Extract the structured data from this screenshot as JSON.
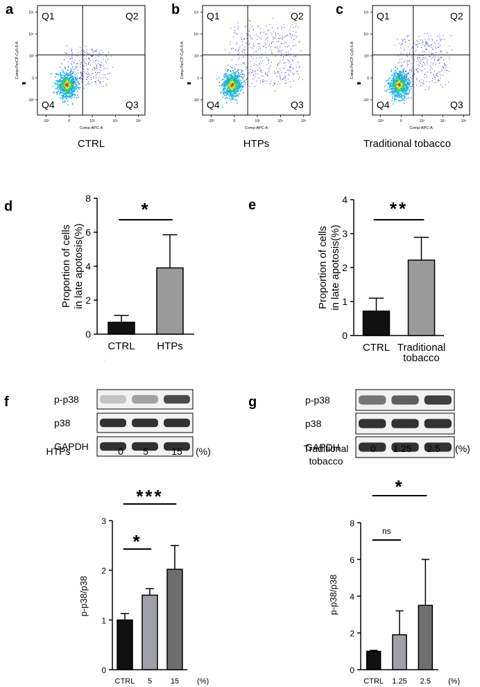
{
  "panels": {
    "a": "a",
    "b": "b",
    "c": "c",
    "d": "d",
    "e": "e",
    "f": "f",
    "g": "g"
  },
  "flow": [
    {
      "caption": "CTRL",
      "xlabel": "Comp-APC-A",
      "ylabel": "Comp-PerCP-Cy5-5-A",
      "quadrants": [
        "Q1",
        "Q2",
        "Q3",
        "Q4"
      ],
      "xticks": [
        "-10³",
        "0",
        "10³",
        "10⁴",
        "10⁵"
      ],
      "yticks": [
        "10⁵",
        "10⁴",
        "10³",
        "0",
        "-10³"
      ],
      "spread": 0.6
    },
    {
      "caption": "HTPs",
      "xlabel": "Comp-APC-A",
      "ylabel": "Comp-PerCP-Cy5-5-A",
      "quadrants": [
        "Q1",
        "Q2",
        "Q3",
        "Q4"
      ],
      "xticks": [
        "-10³",
        "0",
        "10³",
        "10⁴",
        "10⁵"
      ],
      "yticks": [
        "10⁵",
        "10⁴",
        "10³",
        "0",
        "-10³"
      ],
      "spread": 1.0
    },
    {
      "caption": "Traditional tobacco",
      "xlabel": "Comp-APC-A",
      "ylabel": "Comp-PerCP-Cy5-5-A",
      "quadrants": [
        "Q1",
        "Q2",
        "Q3",
        "Q4"
      ],
      "xticks": [
        "-10³",
        "0",
        "10³",
        "10⁴",
        "10⁵"
      ],
      "yticks": [
        "10⁵",
        "10⁴",
        "10³",
        "0",
        "-10³"
      ],
      "spread": 0.8
    }
  ],
  "western_blots": [
    {
      "rows": [
        "p-p38",
        "p38",
        "GAPDH"
      ],
      "treatment_label": "HTPs",
      "doses": [
        "0",
        "5",
        "15"
      ],
      "unit": "(%)",
      "p_p38_intensity": [
        0.2,
        0.35,
        0.75
      ]
    },
    {
      "rows": [
        "p-p38",
        "p38",
        "GAPDH"
      ],
      "treatment_label": "Traditional\ntobacco",
      "doses": [
        "0",
        "1.25",
        "2.5"
      ],
      "unit": "(%)",
      "p_p38_intensity": [
        0.55,
        0.65,
        0.8
      ]
    }
  ],
  "chart_data": [
    {
      "panel": "d",
      "type": "bar",
      "categories": [
        "CTRL",
        "HTPs"
      ],
      "values": [
        0.7,
        3.9
      ],
      "errors": [
        0.4,
        1.95
      ],
      "ylabel": "Proportion of cells\nin late apotosis(%)",
      "ylim": [
        0,
        8
      ],
      "yticks": [
        0,
        2,
        4,
        6,
        8
      ],
      "bar_colors": [
        "#111111",
        "#9a9a9a"
      ],
      "significance": [
        {
          "from": 0,
          "to": 1,
          "label": "*"
        }
      ],
      "footnote": "."
    },
    {
      "panel": "e",
      "type": "bar",
      "categories": [
        "CTRL",
        "Traditional\ntobacco"
      ],
      "values": [
        0.72,
        2.22
      ],
      "errors": [
        0.38,
        0.67
      ],
      "ylabel": "Proportion of cells\nin late apotosis(%)",
      "ylim": [
        0,
        4
      ],
      "yticks": [
        0,
        1,
        2,
        3,
        4
      ],
      "bar_colors": [
        "#111111",
        "#9a9a9a"
      ],
      "significance": [
        {
          "from": 0,
          "to": 1,
          "label": "**"
        }
      ]
    },
    {
      "panel": "f",
      "type": "bar",
      "categories": [
        "CTRL",
        "5",
        "15"
      ],
      "unit": "(%)",
      "values": [
        1.0,
        1.5,
        2.02
      ],
      "errors": [
        0.13,
        0.13,
        0.48
      ],
      "ylabel": "p-p38/p38",
      "xlabel": "HTPs",
      "ylim": [
        0,
        3
      ],
      "yticks": [
        0,
        1,
        2,
        3
      ],
      "bar_colors": [
        "#111111",
        "#a0a0a8",
        "#6e6e6e"
      ],
      "significance": [
        {
          "from": 0,
          "to": 1,
          "label": "*"
        },
        {
          "from": 0,
          "to": 2,
          "label": "***"
        }
      ]
    },
    {
      "panel": "g",
      "type": "bar",
      "categories": [
        "CTRL",
        "1.25",
        "2.5"
      ],
      "unit": "(%)",
      "values": [
        1.0,
        1.9,
        3.5
      ],
      "errors": [
        0.05,
        1.3,
        2.5
      ],
      "ylabel": "p-p38/p38",
      "xlabel": "Traditional tobacco",
      "ylim": [
        0,
        8
      ],
      "yticks": [
        0,
        2,
        4,
        6,
        8
      ],
      "bar_colors": [
        "#111111",
        "#a0a0a8",
        "#6e6e6e"
      ],
      "significance": [
        {
          "from": 0,
          "to": 1,
          "label": "ns"
        },
        {
          "from": 0,
          "to": 2,
          "label": "*"
        }
      ]
    }
  ]
}
